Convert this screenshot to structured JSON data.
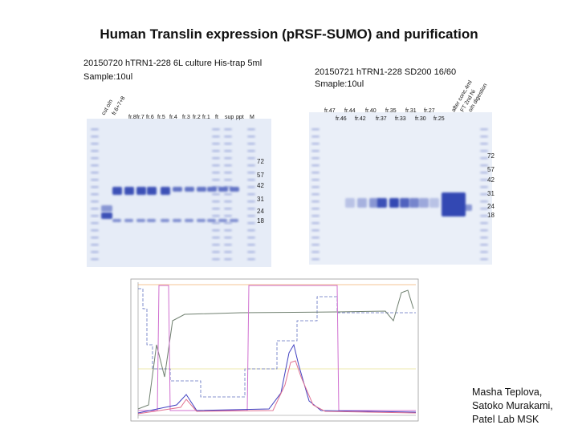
{
  "title": "Human Translin expression (pRSF-SUMO) and purification",
  "gel1": {
    "caption": [
      "20150720 hTRN1-228 6L culture His-trap 5ml",
      "Sample:10ul"
    ],
    "lanes_rotated": [
      "cut o/n",
      "fr.6+7+8"
    ],
    "lanes": [
      "fr.8",
      "fr.7",
      "fr.6",
      "fr.5",
      "fr.4",
      "fr.3",
      "fr.2",
      "fr.1",
      "ft",
      "sup",
      "ppt",
      "M"
    ],
    "markers": [
      "72",
      "57",
      "42",
      "31",
      "24",
      "18"
    ]
  },
  "gel2": {
    "caption": [
      "20150721 hTRN1-228 SD200 16/60",
      "Smaple:10ul"
    ],
    "lanes_top": [
      "fr.47",
      "fr.44",
      "fr.40",
      "fr.35",
      "fr.31",
      "fr.27"
    ],
    "lanes_bottom": [
      "fr.46",
      "fr.42",
      "fr.37",
      "fr.33",
      "fr.30",
      "fr.25"
    ],
    "lanes_rotated": [
      "after conc.4ml",
      "FT 2nd Ni",
      "o/n digestion"
    ],
    "markers": [
      "72",
      "57",
      "42",
      "31",
      "24",
      "18"
    ]
  },
  "credits": [
    "Masha Teplova,",
    "Satoko Murakami,",
    "Patel Lab MSK"
  ]
}
